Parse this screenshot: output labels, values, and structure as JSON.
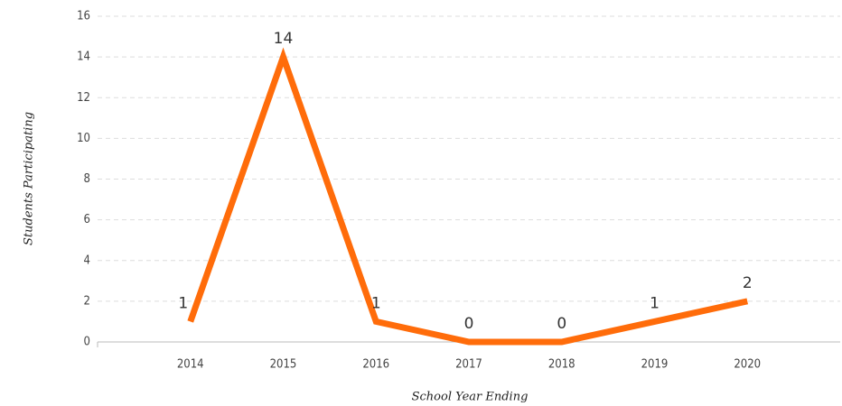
{
  "chart_data": {
    "type": "line",
    "xlabel": "School Year Ending",
    "ylabel": "Students Participating",
    "categories": [
      "2014",
      "2015",
      "2016",
      "2017",
      "2018",
      "2019",
      "2020"
    ],
    "series": [
      {
        "name": "Students Participating",
        "color": "#ff6c0a",
        "values": [
          1,
          14,
          1,
          0,
          0,
          1,
          2
        ]
      }
    ],
    "ylim": [
      0,
      16
    ],
    "yticks": [
      0,
      2,
      4,
      6,
      8,
      10,
      12,
      14,
      16
    ],
    "grid": true,
    "data_labels": true
  }
}
